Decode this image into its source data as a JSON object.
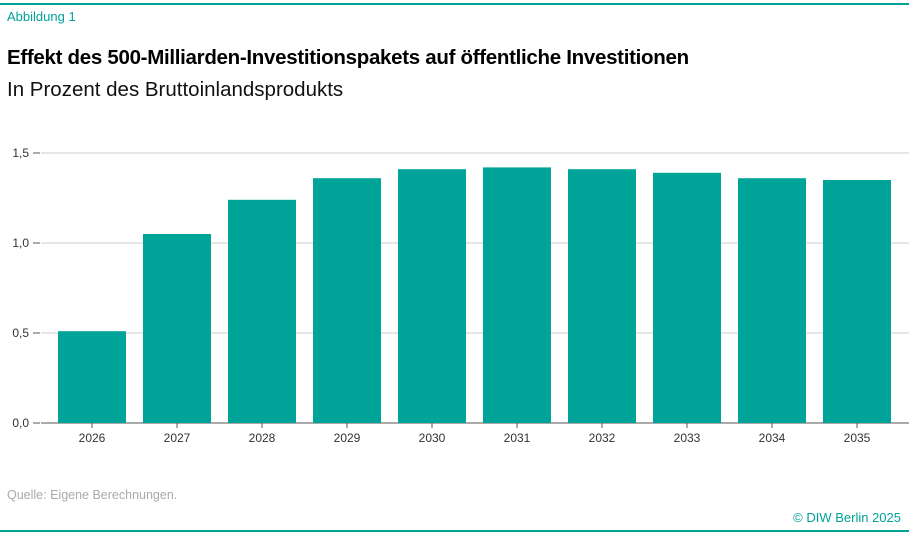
{
  "header": {
    "label": "Abbildung 1",
    "title": "Effekt des 500-Milliarden-Investitionspakets auf öffentliche Investitionen",
    "subtitle": "In Prozent des Bruttoinlandsprodukts"
  },
  "footer": {
    "source": "Quelle: Eigene Berechnungen.",
    "copyright": "© DIW Berlin 2025"
  },
  "colors": {
    "bar": "#00a398",
    "accent": "#00a398"
  },
  "chart_data": {
    "type": "bar",
    "categories": [
      "2026",
      "2027",
      "2028",
      "2029",
      "2030",
      "2031",
      "2032",
      "2033",
      "2034",
      "2035"
    ],
    "values": [
      0.51,
      1.05,
      1.24,
      1.36,
      1.41,
      1.42,
      1.41,
      1.39,
      1.36,
      1.35
    ],
    "ylim": [
      0,
      1.5
    ],
    "yticks": [
      "0,0",
      "0,5",
      "1,0",
      "1,5"
    ],
    "grid": true,
    "xlabel": "",
    "ylabel": ""
  }
}
